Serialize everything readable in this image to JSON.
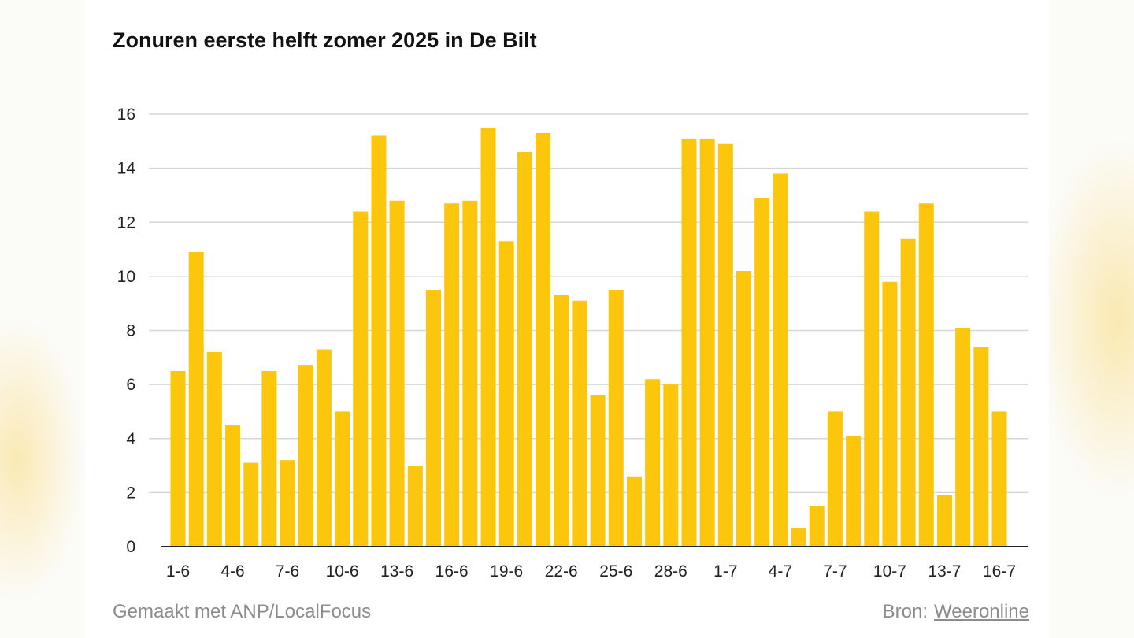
{
  "title": "Zonuren eerste helft zomer 2025 in De Bilt",
  "footer": {
    "made_with": "Gemaakt met ANP/LocalFocus",
    "source_label": "Bron:",
    "source_link": "Weeronline"
  },
  "colors": {
    "bar": "#FCC60D",
    "grid": "#d6d6d6",
    "axis": "#222222"
  },
  "chart_data": {
    "type": "bar",
    "title": "Zonuren eerste helft zomer 2025 in De Bilt",
    "xlabel": "",
    "ylabel": "",
    "ylim": [
      0,
      16
    ],
    "yticks": [
      0,
      2,
      4,
      6,
      8,
      10,
      12,
      14,
      16
    ],
    "grid": true,
    "categories": [
      "1-6",
      "2-6",
      "3-6",
      "4-6",
      "5-6",
      "6-6",
      "7-6",
      "8-6",
      "9-6",
      "10-6",
      "11-6",
      "12-6",
      "13-6",
      "14-6",
      "15-6",
      "16-6",
      "17-6",
      "18-6",
      "19-6",
      "20-6",
      "21-6",
      "22-6",
      "23-6",
      "24-6",
      "25-6",
      "26-6",
      "27-6",
      "28-6",
      "29-6",
      "30-6",
      "1-7",
      "2-7",
      "3-7",
      "4-7",
      "5-7",
      "6-7",
      "7-7",
      "8-7",
      "9-7",
      "10-7",
      "11-7",
      "12-7",
      "13-7",
      "14-7",
      "15-7",
      "16-7"
    ],
    "xtick_labels": [
      "1-6",
      "4-6",
      "7-6",
      "10-6",
      "13-6",
      "16-6",
      "19-6",
      "22-6",
      "25-6",
      "28-6",
      "1-7",
      "4-7",
      "7-7",
      "10-7",
      "13-7",
      "16-7"
    ],
    "values": [
      6.5,
      10.9,
      7.2,
      4.5,
      3.1,
      6.5,
      3.2,
      6.7,
      7.3,
      5.0,
      12.4,
      15.2,
      12.8,
      3.0,
      9.5,
      12.7,
      12.8,
      15.5,
      11.3,
      14.6,
      15.3,
      9.3,
      9.1,
      5.6,
      9.5,
      2.6,
      6.2,
      6.0,
      15.1,
      15.1,
      14.9,
      10.2,
      12.9,
      13.8,
      0.7,
      1.5,
      5.0,
      4.1,
      12.4,
      9.8,
      11.4,
      12.7,
      1.9,
      8.1,
      7.4,
      5.0
    ]
  }
}
